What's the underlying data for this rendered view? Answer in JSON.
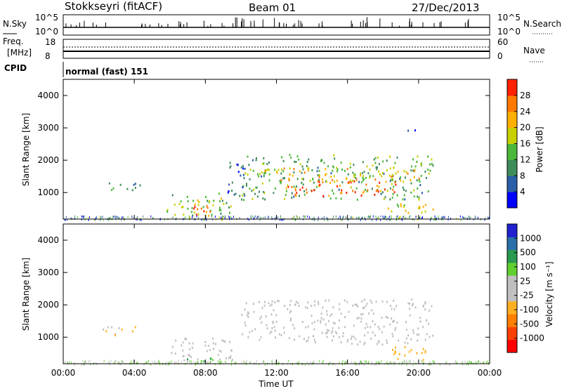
{
  "header": {
    "station": "Stokkseyri (fitACF)",
    "beam": "Beam 01",
    "date": "27/Dec/2013"
  },
  "top_panels": {
    "nsky_label": "N.Sky",
    "nsky_ticks": [
      "10^5",
      "10^0"
    ],
    "nsearch_label": "N.Search",
    "nsearch_ticks": [
      "10^5",
      "10^0"
    ],
    "freq_label": "Freq.",
    "freq_unit": "[MHz]",
    "freq_ticks": [
      "18",
      "8"
    ],
    "nave_label": "Nave",
    "nave_ticks": [
      "60",
      "0"
    ],
    "cpid_label": "CPID",
    "cpid_text": "normal (fast) 151"
  },
  "colors": {
    "power": [
      "#0000ff",
      "#2b5fa8",
      "#3f8c5b",
      "#4cb83a",
      "#c8d000",
      "#ffb000",
      "#ff7800",
      "#ff2000"
    ],
    "velocity": [
      "#ff0000",
      "#ff4000",
      "#ff8000",
      "#ffb020",
      "#c0c0c0",
      "#c0c0c0",
      "#60d030",
      "#2a9a50",
      "#2a70a8",
      "#2020d0"
    ],
    "ground": "#c0c0c0"
  },
  "chart_data": [
    {
      "type": "heatmap",
      "name": "power",
      "ylabel": "Slant Range [km]",
      "yticks": [
        "1000",
        "2000",
        "3000",
        "4000"
      ],
      "ylim": [
        180,
        4500
      ],
      "xlim_hours": [
        0,
        24
      ],
      "xticks": [
        "00:00",
        "04:00",
        "08:00",
        "12:00",
        "16:00",
        "20:00",
        "00:00"
      ],
      "colorbar": {
        "label": "Power [dB]",
        "ticks": [
          "28",
          "24",
          "20",
          "16",
          "12",
          "8",
          "4"
        ],
        "range": [
          0,
          30
        ]
      },
      "patches": [
        {
          "t": [
            2.2,
            4.3
          ],
          "r": [
            1050,
            1350
          ],
          "v": 9
        },
        {
          "t": [
            5.8,
            9.5
          ],
          "r": [
            250,
            1000
          ],
          "v": 14
        },
        {
          "t": [
            7.0,
            8.5
          ],
          "r": [
            300,
            800
          ],
          "v": 24
        },
        {
          "t": [
            9.0,
            10.2
          ],
          "r": [
            900,
            2000
          ],
          "v": 6
        },
        {
          "t": [
            10.0,
            20.8
          ],
          "r": [
            800,
            2200
          ],
          "v": 12
        },
        {
          "t": [
            12.5,
            19.0
          ],
          "r": [
            900,
            1400
          ],
          "v": 26
        },
        {
          "t": [
            11.0,
            20.0
          ],
          "r": [
            1400,
            1800
          ],
          "v": 20
        },
        {
          "t": [
            18.2,
            20.8
          ],
          "r": [
            250,
            700
          ],
          "v": 18
        },
        {
          "t": [
            19.2,
            19.9
          ],
          "r": [
            2800,
            3000
          ],
          "v": 4
        }
      ]
    },
    {
      "type": "heatmap",
      "name": "velocity",
      "ylabel": "Slant Range [km]",
      "yticks": [
        "1000",
        "2000",
        "3000",
        "4000"
      ],
      "ylim": [
        180,
        4500
      ],
      "xlim_hours": [
        0,
        24
      ],
      "xticks": [
        "00:00",
        "04:00",
        "08:00",
        "12:00",
        "16:00",
        "20:00",
        "00:00"
      ],
      "xlabel": "Time UT",
      "colorbar": {
        "label": "Velocity [m s⁻¹]",
        "ticks": [
          "1000",
          "500",
          "100",
          "25",
          "-25",
          "-100",
          "-500",
          "-1000"
        ]
      },
      "patches": [
        {
          "t": [
            2.2,
            4.3
          ],
          "r": [
            1050,
            1350
          ],
          "v": -120
        },
        {
          "t": [
            5.8,
            9.5
          ],
          "r": [
            250,
            1000
          ],
          "v": 0
        },
        {
          "t": [
            6.8,
            8.5
          ],
          "r": [
            200,
            400
          ],
          "v": 150
        },
        {
          "t": [
            10.0,
            20.8
          ],
          "r": [
            800,
            2200
          ],
          "v": 0
        },
        {
          "t": [
            18.5,
            20.5
          ],
          "r": [
            300,
            800
          ],
          "v": -200
        }
      ]
    }
  ]
}
